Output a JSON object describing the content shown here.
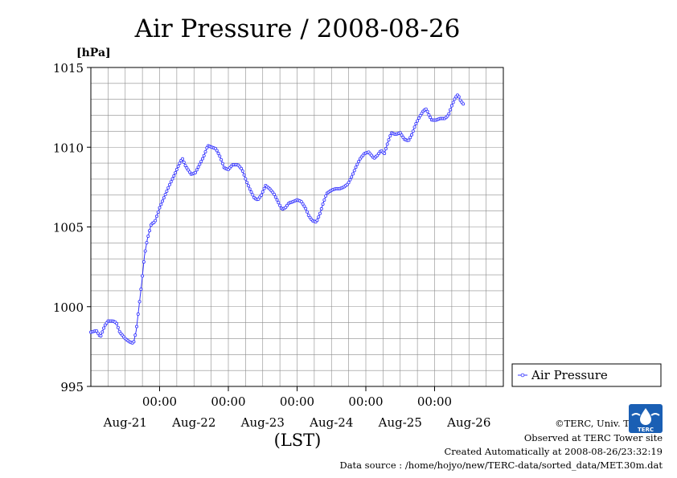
{
  "chart_data": {
    "type": "line",
    "title": "Air Pressure / 2008-08-26",
    "ylabel": "[hPa]",
    "xlabel": "(LST)",
    "ylim": [
      995,
      1015
    ],
    "yticks": [
      "995",
      "1000",
      "1005",
      "1010",
      "1015"
    ],
    "xlim": [
      0,
      6
    ],
    "xunit": "days since 2008-08-20 24:00 LST",
    "time_ticks": [
      {
        "x": 1,
        "label": "00:00"
      },
      {
        "x": 2,
        "label": "00:00"
      },
      {
        "x": 3,
        "label": "00:00"
      },
      {
        "x": 4,
        "label": "00:00"
      },
      {
        "x": 5,
        "label": "00:00"
      }
    ],
    "date_labels": [
      {
        "x": 0.5,
        "label": "Aug-21"
      },
      {
        "x": 1.5,
        "label": "Aug-22"
      },
      {
        "x": 2.5,
        "label": "Aug-23"
      },
      {
        "x": 3.5,
        "label": "Aug-24"
      },
      {
        "x": 4.5,
        "label": "Aug-25"
      },
      {
        "x": 5.5,
        "label": "Aug-26"
      }
    ],
    "grid": true,
    "legend_position": "right",
    "series": [
      {
        "name": "Air Pressure",
        "color": "#3333ff",
        "points": [
          [
            0.0,
            998.4
          ],
          [
            0.08,
            998.5
          ],
          [
            0.14,
            998.1
          ],
          [
            0.2,
            998.8
          ],
          [
            0.25,
            999.1
          ],
          [
            0.32,
            999.1
          ],
          [
            0.37,
            999.0
          ],
          [
            0.42,
            998.4
          ],
          [
            0.5,
            998.0
          ],
          [
            0.56,
            997.8
          ],
          [
            0.62,
            997.7
          ],
          [
            0.66,
            998.5
          ],
          [
            0.7,
            1000.0
          ],
          [
            0.74,
            1001.5
          ],
          [
            0.78,
            1003.2
          ],
          [
            0.82,
            1004.2
          ],
          [
            0.88,
            1005.2
          ],
          [
            0.93,
            1005.3
          ],
          [
            1.0,
            1006.2
          ],
          [
            1.07,
            1006.9
          ],
          [
            1.14,
            1007.6
          ],
          [
            1.22,
            1008.3
          ],
          [
            1.28,
            1008.9
          ],
          [
            1.33,
            1009.3
          ],
          [
            1.38,
            1008.8
          ],
          [
            1.46,
            1008.3
          ],
          [
            1.52,
            1008.4
          ],
          [
            1.58,
            1008.9
          ],
          [
            1.64,
            1009.4
          ],
          [
            1.7,
            1010.1
          ],
          [
            1.76,
            1010.0
          ],
          [
            1.82,
            1009.9
          ],
          [
            1.88,
            1009.4
          ],
          [
            1.94,
            1008.7
          ],
          [
            2.0,
            1008.6
          ],
          [
            2.06,
            1008.9
          ],
          [
            2.14,
            1008.9
          ],
          [
            2.2,
            1008.6
          ],
          [
            2.26,
            1007.9
          ],
          [
            2.32,
            1007.3
          ],
          [
            2.38,
            1006.8
          ],
          [
            2.43,
            1006.7
          ],
          [
            2.48,
            1007.0
          ],
          [
            2.54,
            1007.6
          ],
          [
            2.6,
            1007.4
          ],
          [
            2.66,
            1007.1
          ],
          [
            2.72,
            1006.6
          ],
          [
            2.78,
            1006.1
          ],
          [
            2.83,
            1006.2
          ],
          [
            2.88,
            1006.5
          ],
          [
            2.95,
            1006.6
          ],
          [
            3.0,
            1006.7
          ],
          [
            3.06,
            1006.6
          ],
          [
            3.12,
            1006.2
          ],
          [
            3.17,
            1005.7
          ],
          [
            3.22,
            1005.4
          ],
          [
            3.28,
            1005.3
          ],
          [
            3.33,
            1005.8
          ],
          [
            3.38,
            1006.5
          ],
          [
            3.43,
            1007.1
          ],
          [
            3.5,
            1007.3
          ],
          [
            3.56,
            1007.4
          ],
          [
            3.62,
            1007.4
          ],
          [
            3.68,
            1007.5
          ],
          [
            3.74,
            1007.7
          ],
          [
            3.8,
            1008.2
          ],
          [
            3.86,
            1008.8
          ],
          [
            3.92,
            1009.3
          ],
          [
            3.98,
            1009.6
          ],
          [
            4.04,
            1009.7
          ],
          [
            4.08,
            1009.5
          ],
          [
            4.12,
            1009.3
          ],
          [
            4.17,
            1009.5
          ],
          [
            4.22,
            1009.8
          ],
          [
            4.27,
            1009.6
          ],
          [
            4.32,
            1010.3
          ],
          [
            4.37,
            1010.9
          ],
          [
            4.43,
            1010.8
          ],
          [
            4.5,
            1010.9
          ],
          [
            4.56,
            1010.5
          ],
          [
            4.62,
            1010.4
          ],
          [
            4.67,
            1010.8
          ],
          [
            4.72,
            1011.4
          ],
          [
            4.78,
            1011.9
          ],
          [
            4.84,
            1012.3
          ],
          [
            4.88,
            1012.4
          ],
          [
            4.92,
            1012.0
          ],
          [
            4.96,
            1011.7
          ],
          [
            5.02,
            1011.7
          ],
          [
            5.08,
            1011.8
          ],
          [
            5.15,
            1011.8
          ],
          [
            5.2,
            1012.0
          ],
          [
            5.25,
            1012.6
          ],
          [
            5.3,
            1013.1
          ],
          [
            5.34,
            1013.3
          ],
          [
            5.38,
            1012.9
          ],
          [
            5.42,
            1012.7
          ]
        ]
      }
    ]
  },
  "credits": {
    "copyright": "©TERC, Univ. Tsukuba",
    "observed": "Observed at TERC Tower site",
    "created": "Created Automatically at 2008-08-26/23:32:19",
    "source": "Data source : /home/hojyo/new/TERC-data/sorted_data/MET.30m.dat"
  },
  "logo": {
    "label": "TERC",
    "color": "#1a5fb4"
  }
}
